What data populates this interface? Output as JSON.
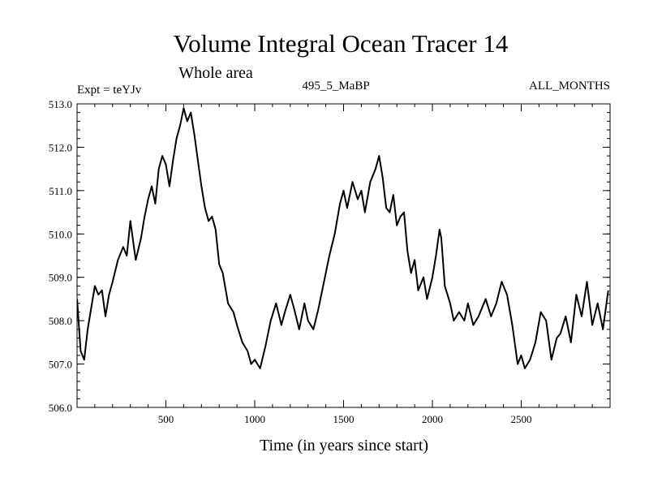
{
  "chart_data": {
    "type": "line",
    "title": "Volume Integral Ocean Tracer 14",
    "subtitle": "Whole area",
    "expt_label": "Expt = teYJv",
    "period_label": "495_5_MaBP",
    "months_label": "ALL_MONTHS",
    "xlabel": "Time (in years since start)",
    "ylabel": "",
    "xlim": [
      0,
      3000
    ],
    "ylim": [
      506.0,
      513.0
    ],
    "x_ticks": [
      500,
      1000,
      1500,
      2000,
      2500
    ],
    "x_tick_labels": [
      "500",
      "1000",
      "1500",
      "2000",
      "2500"
    ],
    "y_ticks": [
      506,
      507,
      508,
      509,
      510,
      511,
      512,
      513
    ],
    "y_tick_labels": [
      "506.0",
      "507.0",
      "508.0",
      "509.0",
      "510.0",
      "511.0",
      "512.0",
      "513.0"
    ],
    "series": [
      {
        "name": "Volume Integral Ocean Tracer 14",
        "color": "#000000",
        "x": [
          0,
          20,
          40,
          60,
          80,
          100,
          120,
          140,
          160,
          180,
          200,
          230,
          260,
          280,
          300,
          330,
          360,
          380,
          400,
          420,
          440,
          460,
          480,
          500,
          520,
          540,
          560,
          580,
          600,
          620,
          640,
          660,
          680,
          700,
          720,
          740,
          760,
          780,
          800,
          820,
          850,
          880,
          900,
          930,
          960,
          980,
          1000,
          1030,
          1060,
          1090,
          1120,
          1150,
          1170,
          1200,
          1220,
          1250,
          1280,
          1300,
          1330,
          1360,
          1390,
          1420,
          1450,
          1480,
          1500,
          1520,
          1550,
          1580,
          1600,
          1620,
          1650,
          1680,
          1700,
          1720,
          1740,
          1760,
          1780,
          1800,
          1820,
          1840,
          1860,
          1880,
          1900,
          1920,
          1950,
          1970,
          2000,
          2020,
          2040,
          2050,
          2070,
          2100,
          2120,
          2150,
          2180,
          2200,
          2230,
          2260,
          2300,
          2330,
          2360,
          2390,
          2420,
          2450,
          2480,
          2500,
          2520,
          2550,
          2580,
          2610,
          2640,
          2670,
          2700,
          2720,
          2750,
          2780,
          2810,
          2840,
          2870,
          2900,
          2930,
          2960,
          2990
        ],
        "values": [
          508.5,
          507.3,
          507.1,
          507.8,
          508.3,
          508.8,
          508.6,
          508.7,
          508.1,
          508.6,
          508.9,
          509.4,
          509.7,
          509.5,
          510.3,
          509.4,
          509.9,
          510.4,
          510.8,
          511.1,
          510.7,
          511.5,
          511.8,
          511.6,
          511.1,
          511.7,
          512.2,
          512.5,
          512.9,
          512.6,
          512.8,
          512.3,
          511.7,
          511.1,
          510.6,
          510.3,
          510.4,
          510.1,
          509.3,
          509.1,
          508.4,
          508.2,
          507.9,
          507.5,
          507.3,
          507.0,
          507.1,
          506.9,
          507.4,
          508.0,
          508.4,
          507.9,
          508.2,
          508.6,
          508.3,
          507.8,
          508.4,
          508.0,
          507.8,
          508.3,
          508.9,
          509.5,
          510.0,
          510.7,
          511.0,
          510.6,
          511.2,
          510.8,
          511.0,
          510.5,
          511.2,
          511.5,
          511.8,
          511.3,
          510.6,
          510.5,
          510.9,
          510.2,
          510.4,
          510.5,
          509.6,
          509.1,
          509.4,
          508.7,
          509.0,
          508.5,
          509.0,
          509.5,
          510.1,
          509.9,
          508.8,
          508.4,
          508.0,
          508.2,
          508.0,
          508.4,
          507.9,
          508.1,
          508.5,
          508.1,
          508.4,
          508.9,
          508.6,
          507.9,
          507.0,
          507.2,
          506.9,
          507.1,
          507.5,
          508.2,
          508.0,
          507.1,
          507.6,
          507.7,
          508.1,
          507.5,
          508.6,
          508.1,
          508.9,
          507.9,
          508.4,
          507.8,
          508.7
        ]
      }
    ]
  }
}
